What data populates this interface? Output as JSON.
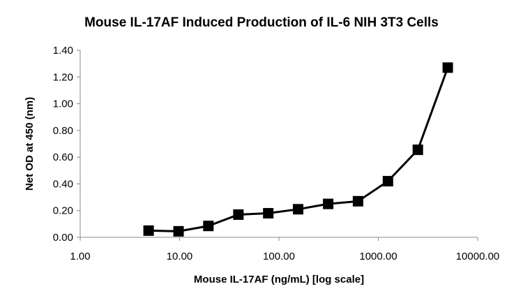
{
  "chart_data": {
    "type": "line",
    "title": "Mouse IL-17AF Induced Production of IL-6 NIH 3T3 Cells",
    "xlabel": "Mouse IL-17AF (ng/mL) [log scale]",
    "ylabel": "Net OD at 450 (nm)",
    "x_scale": "log",
    "xlim": [
      1,
      10000
    ],
    "ylim": [
      0,
      1.4
    ],
    "x_ticks": [
      1,
      10,
      100,
      1000,
      10000
    ],
    "x_tick_labels": [
      "1.00",
      "10.00",
      "100.00",
      "1000.00",
      "10000.00"
    ],
    "y_ticks": [
      0,
      0.2,
      0.4,
      0.6,
      0.8,
      1.0,
      1.2,
      1.4
    ],
    "y_tick_labels": [
      "0.00",
      "0.20",
      "0.40",
      "0.60",
      "0.80",
      "1.00",
      "1.20",
      "1.40"
    ],
    "grid": false,
    "legend": "none",
    "marker": "square",
    "line_color": "#000000",
    "series": [
      {
        "x": [
          4.88,
          9.77,
          19.5,
          39.1,
          78.1,
          156,
          313,
          625,
          1250,
          2500,
          5000
        ],
        "y": [
          0.05,
          0.045,
          0.085,
          0.17,
          0.18,
          0.21,
          0.25,
          0.27,
          0.42,
          0.655,
          1.27
        ]
      }
    ]
  }
}
